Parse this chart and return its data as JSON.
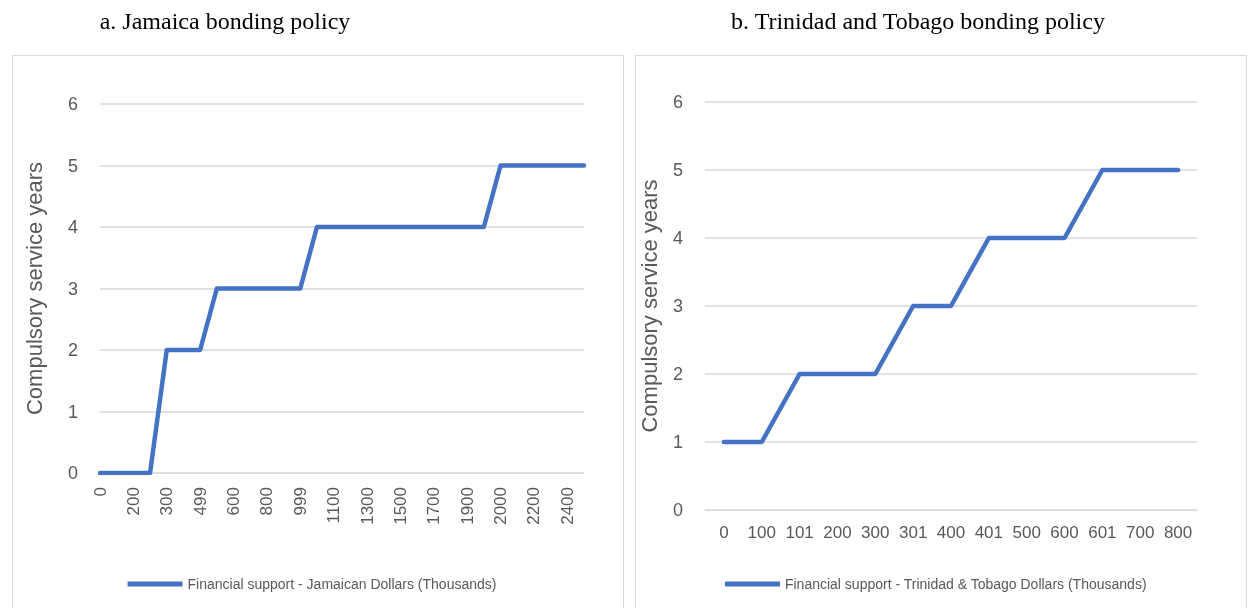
{
  "chart_data": [
    {
      "type": "line",
      "title": "a. Jamaica bonding policy",
      "ylabel": "Compulsory service years",
      "categories": [
        "0",
        null,
        "200",
        null,
        "300",
        null,
        "499",
        null,
        "600",
        null,
        "800",
        null,
        "999",
        null,
        "1100",
        null,
        "1300",
        null,
        "1500",
        null,
        "1700",
        null,
        "1900",
        null,
        "2000",
        null,
        "2200",
        null,
        "2400",
        null
      ],
      "series": [
        {
          "name": "Financial support - Jamaican Dollars (Thousands)",
          "color": "#4472c4",
          "values": [
            0,
            0,
            0,
            0,
            2,
            2,
            2,
            3,
            3,
            3,
            3,
            3,
            3,
            4,
            4,
            4,
            4,
            4,
            4,
            4,
            4,
            4,
            4,
            4,
            5,
            5,
            5,
            5,
            5,
            5
          ]
        }
      ],
      "ylim": [
        0,
        6
      ],
      "yticks": [
        0,
        1,
        2,
        3,
        4,
        5,
        6
      ],
      "grid": "y",
      "legend": "bottom",
      "marker": "none"
    },
    {
      "type": "line",
      "title": "b. Trinidad and Tobago bonding policy",
      "ylabel": "Compulsory service years",
      "categories": [
        "0",
        "100",
        "101",
        "200",
        "300",
        "301",
        "400",
        "401",
        "500",
        "600",
        "601",
        "700",
        "800"
      ],
      "series": [
        {
          "name": "Financial support - Trinidad & Tobago Dollars (Thousands)",
          "color": "#4472c4",
          "values": [
            1,
            1,
            2,
            2,
            2,
            3,
            3,
            4,
            4,
            4,
            5,
            5,
            5
          ]
        }
      ],
      "ylim": [
        0,
        6
      ],
      "yticks": [
        0,
        1,
        2,
        3,
        4,
        5,
        6
      ],
      "grid": "y",
      "legend": "bottom",
      "marker": "none"
    }
  ]
}
